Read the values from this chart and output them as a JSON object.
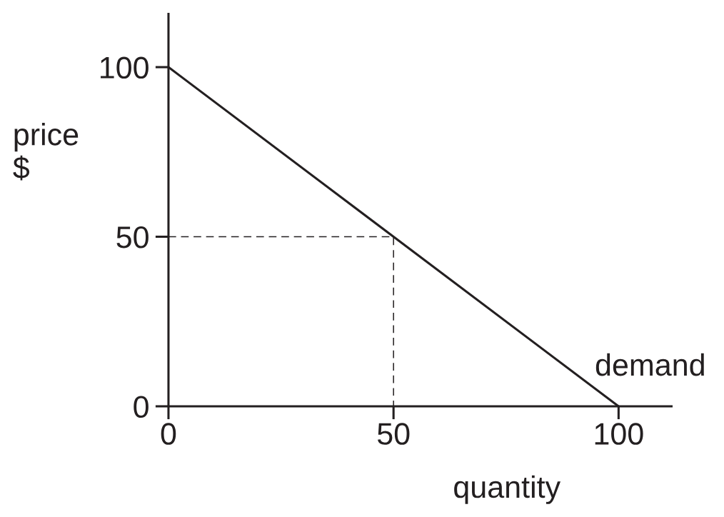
{
  "chart_data": {
    "type": "line",
    "xlabel": "quantity",
    "ylabel": "price\n$",
    "series": [
      {
        "name": "demand",
        "color": "#231f20",
        "x": [
          0,
          100
        ],
        "values": [
          100,
          0
        ]
      },
      {
        "color": "#231f20",
        "x": [
          0,
          50,
          50
        ],
        "values": [
          50,
          50,
          0
        ],
        "line_style": "dashed"
      }
    ],
    "xlim": [
      0,
      112
    ],
    "ylim": [
      0,
      116
    ],
    "xticks": [
      0,
      50,
      100
    ],
    "yticks": [
      0,
      50,
      100
    ]
  }
}
